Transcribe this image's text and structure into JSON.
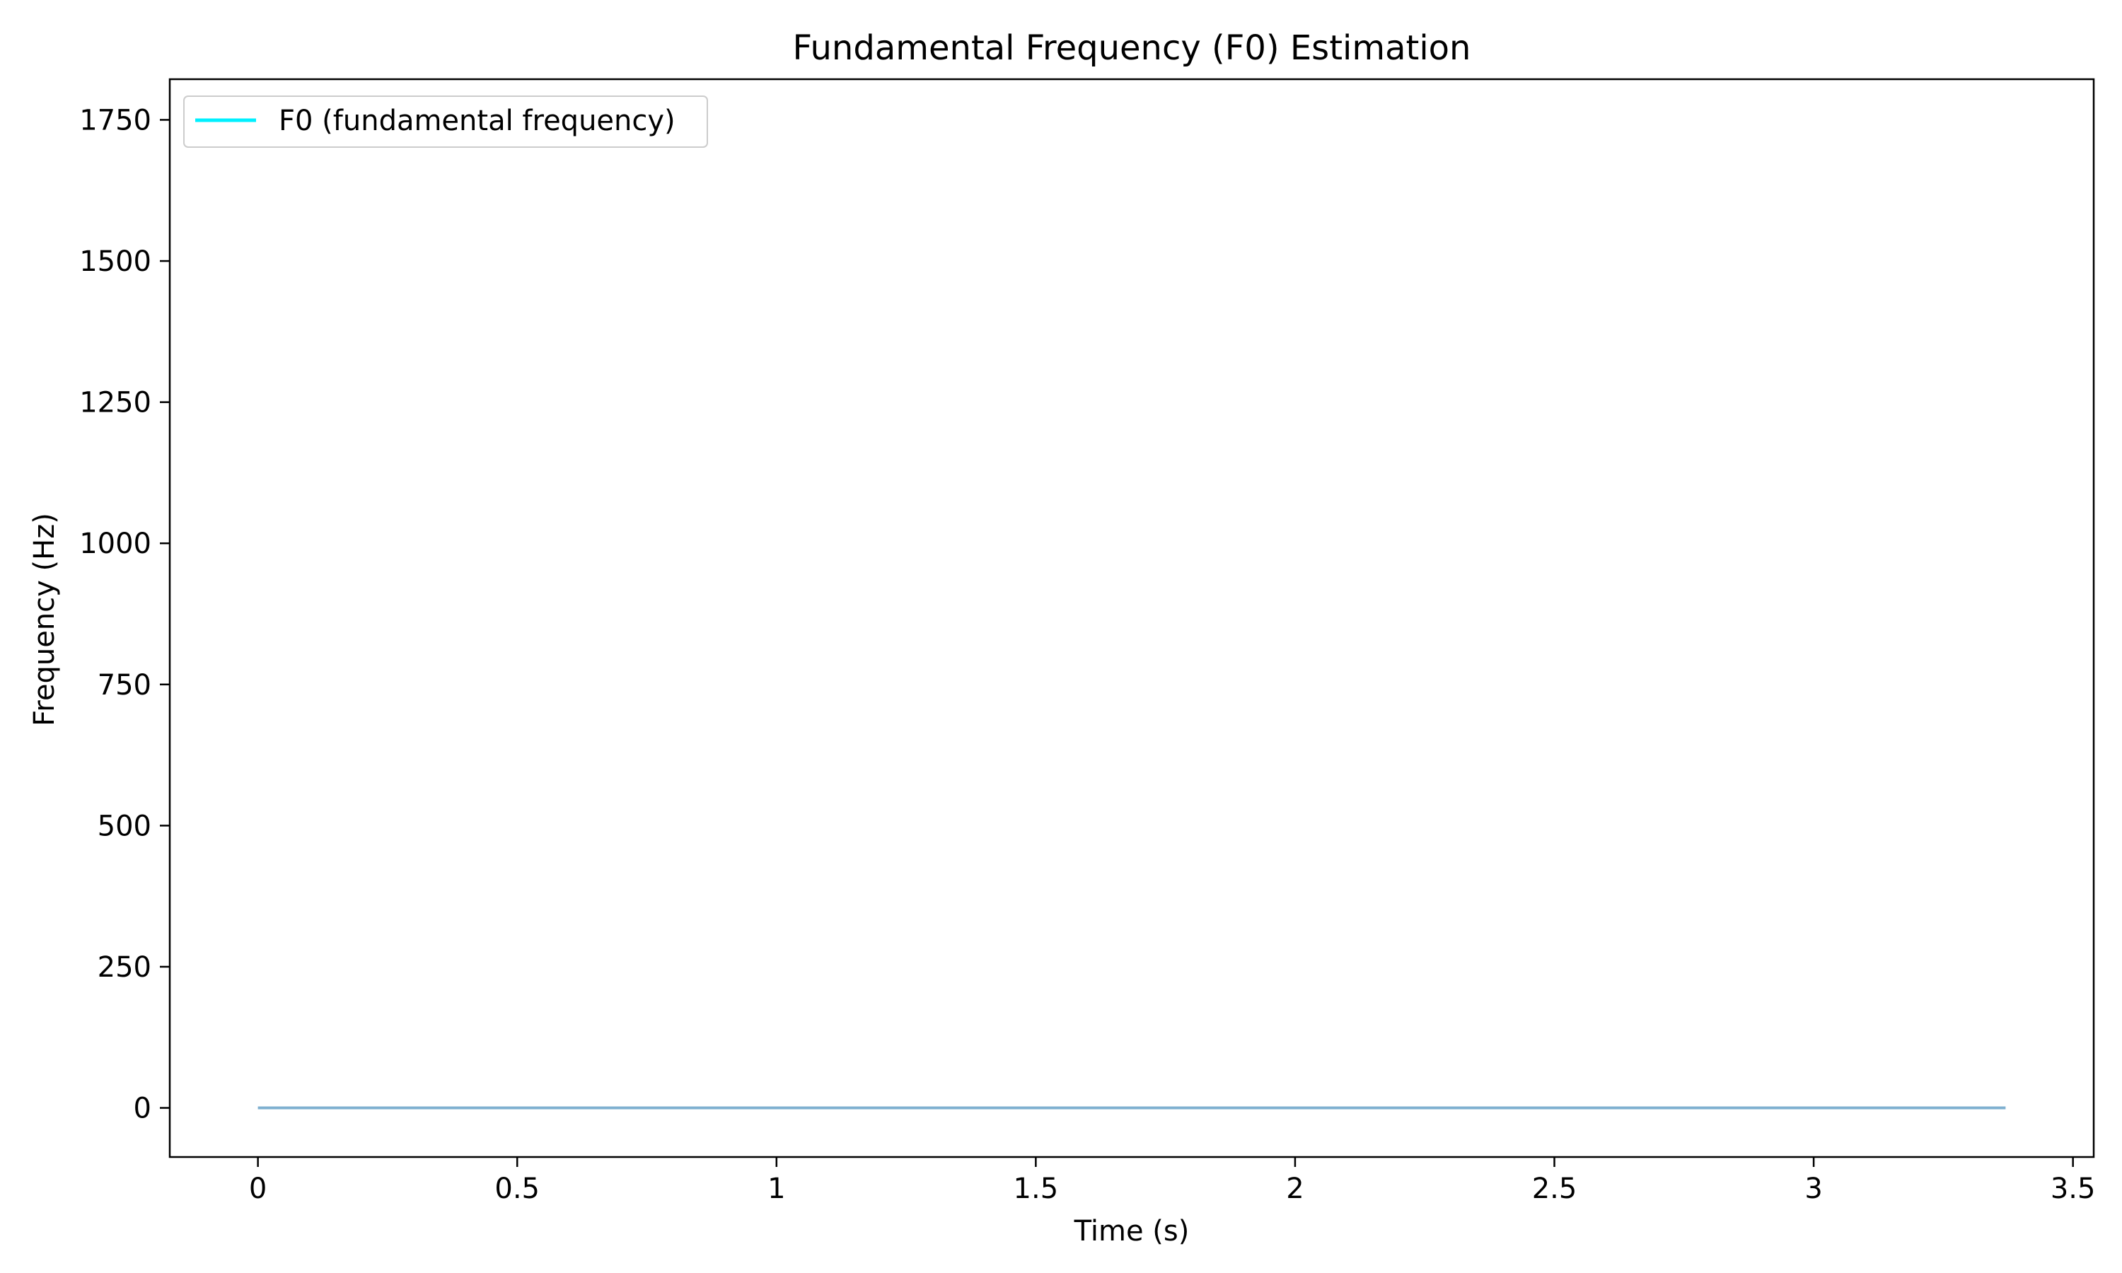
{
  "chart_data": {
    "type": "line",
    "title": "Fundamental Frequency (F0) Estimation",
    "xlabel": "Time (s)",
    "ylabel": "Frequency (Hz)",
    "xlim": [
      -0.17,
      3.54
    ],
    "ylim": [
      -87,
      1822
    ],
    "xticks": [
      0,
      0.5,
      1,
      1.5,
      2,
      2.5,
      3,
      3.5
    ],
    "xtick_labels": [
      "0",
      "0.5",
      "1",
      "1.5",
      "2",
      "2.5",
      "3",
      "3.5"
    ],
    "yticks": [
      0,
      250,
      500,
      750,
      1000,
      1250,
      1500,
      1750
    ],
    "ytick_labels": [
      "0",
      "250",
      "500",
      "750",
      "1000",
      "1250",
      "1500",
      "1750"
    ],
    "grid": false,
    "legend_position": "upper-left",
    "series": [
      {
        "name": "F0 (fundamental frequency)",
        "legend_color": "#00f0ff",
        "plot_color": "#7fb0d0",
        "x": [
          0,
          0.5,
          1,
          1.5,
          2,
          2.5,
          3,
          3.37
        ],
        "y": [
          0,
          0,
          0,
          0,
          0,
          0,
          0,
          0
        ]
      }
    ]
  }
}
